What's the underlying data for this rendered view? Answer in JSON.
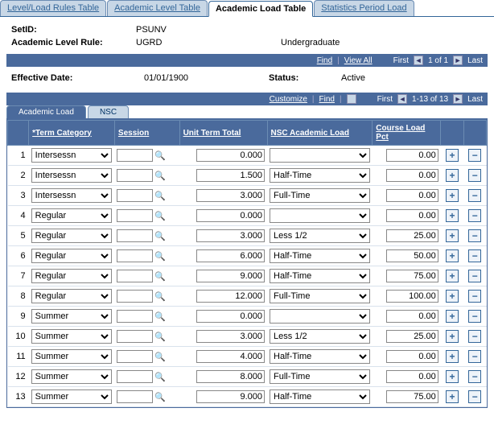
{
  "pageTabs": {
    "items": [
      {
        "label": "Level/Load Rules Table",
        "active": false
      },
      {
        "label": "Academic Level Table",
        "active": false
      },
      {
        "label": "Academic Load Table",
        "active": true
      },
      {
        "label": "Statistics Period Load",
        "active": false
      }
    ]
  },
  "header": {
    "setid_label": "SetID:",
    "setid_value": "PSUNV",
    "rule_label": "Academic Level Rule:",
    "rule_value": "UGRD",
    "rule_desc": "Undergraduate"
  },
  "nav1": {
    "find": "Find",
    "viewall": "View All",
    "first": "First",
    "count": "1 of 1",
    "last": "Last"
  },
  "effective": {
    "date_label": "Effective Date:",
    "date_value": "01/01/1900",
    "status_label": "Status:",
    "status_value": "Active"
  },
  "nav2": {
    "customize": "Customize",
    "find": "Find",
    "first": "First",
    "count": "1-13 of 13",
    "last": "Last"
  },
  "innerTabs": {
    "items": [
      {
        "label": "Academic Load",
        "active": true
      },
      {
        "label": "NSC",
        "active": false
      }
    ]
  },
  "columns": {
    "term": "*Term Category",
    "session": "Session",
    "utt": "Unit Term Total",
    "nsc": "NSC Academic Load",
    "clp": "Course Load Pct"
  },
  "term_options": [
    "Intersessn",
    "Regular",
    "Summer"
  ],
  "nsc_options": [
    "",
    "Half-Time",
    "Full-Time",
    "Less 1/2"
  ],
  "rows": [
    {
      "n": "1",
      "term": "Intersessn",
      "sess": "",
      "utt": "0.000",
      "nsc": "",
      "clp": "0.00"
    },
    {
      "n": "2",
      "term": "Intersessn",
      "sess": "",
      "utt": "1.500",
      "nsc": "Half-Time",
      "clp": "0.00"
    },
    {
      "n": "3",
      "term": "Intersessn",
      "sess": "",
      "utt": "3.000",
      "nsc": "Full-Time",
      "clp": "0.00"
    },
    {
      "n": "4",
      "term": "Regular",
      "sess": "",
      "utt": "0.000",
      "nsc": "",
      "clp": "0.00"
    },
    {
      "n": "5",
      "term": "Regular",
      "sess": "",
      "utt": "3.000",
      "nsc": "Less 1/2",
      "clp": "25.00"
    },
    {
      "n": "6",
      "term": "Regular",
      "sess": "",
      "utt": "6.000",
      "nsc": "Half-Time",
      "clp": "50.00"
    },
    {
      "n": "7",
      "term": "Regular",
      "sess": "",
      "utt": "9.000",
      "nsc": "Half-Time",
      "clp": "75.00"
    },
    {
      "n": "8",
      "term": "Regular",
      "sess": "",
      "utt": "12.000",
      "nsc": "Full-Time",
      "clp": "100.00"
    },
    {
      "n": "9",
      "term": "Summer",
      "sess": "",
      "utt": "0.000",
      "nsc": "",
      "clp": "0.00"
    },
    {
      "n": "10",
      "term": "Summer",
      "sess": "",
      "utt": "3.000",
      "nsc": "Less 1/2",
      "clp": "25.00"
    },
    {
      "n": "11",
      "term": "Summer",
      "sess": "",
      "utt": "4.000",
      "nsc": "Half-Time",
      "clp": "0.00"
    },
    {
      "n": "12",
      "term": "Summer",
      "sess": "",
      "utt": "8.000",
      "nsc": "Full-Time",
      "clp": "0.00"
    },
    {
      "n": "13",
      "term": "Summer",
      "sess": "",
      "utt": "9.000",
      "nsc": "Half-Time",
      "clp": "75.00"
    }
  ],
  "colors": {
    "header_bg": "#4a6a9c",
    "accent": "#336699",
    "row_border": "#d9e2ec"
  }
}
